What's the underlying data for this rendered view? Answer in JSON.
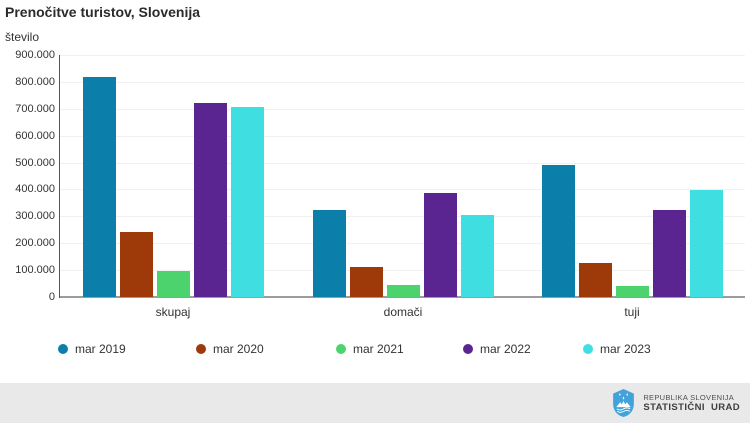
{
  "title": "Prenočitve turistov, Slovenija",
  "y_axis_label": "število",
  "y_ticks": [
    "0",
    "100.000",
    "200.000",
    "300.000",
    "400.000",
    "500.000",
    "600.000",
    "700.000",
    "800.000",
    "900.000"
  ],
  "chart_data": {
    "type": "bar",
    "title": "Prenočitve turistov, Slovenija",
    "xlabel": "",
    "ylabel": "število",
    "categories": [
      "skupaj",
      "domači",
      "tuji"
    ],
    "series": [
      {
        "name": "mar 2019",
        "color": "#0b7fa9",
        "values": [
          820000,
          323000,
          490000
        ]
      },
      {
        "name": "mar 2020",
        "color": "#9e3a0a",
        "values": [
          241000,
          110000,
          125000
        ]
      },
      {
        "name": "mar 2021",
        "color": "#4cd36d",
        "values": [
          95000,
          45000,
          42000
        ]
      },
      {
        "name": "mar 2022",
        "color": "#5a2591",
        "values": [
          722000,
          385000,
          325000
        ]
      },
      {
        "name": "mar 2023",
        "color": "#3fdfe1",
        "values": [
          708000,
          304000,
          397000
        ]
      }
    ],
    "ylim": [
      0,
      900000
    ],
    "ytick_step": 100000,
    "grid": true,
    "legend_position": "bottom"
  },
  "footer": {
    "org_line1": "REPUBLIKA SLOVENIJA",
    "org_line2": "STATISTIČNI URAD",
    "logo": "slovenia-coat-of-arms",
    "background": "#e9e9e9",
    "logo_blue": "#41a3d9"
  }
}
